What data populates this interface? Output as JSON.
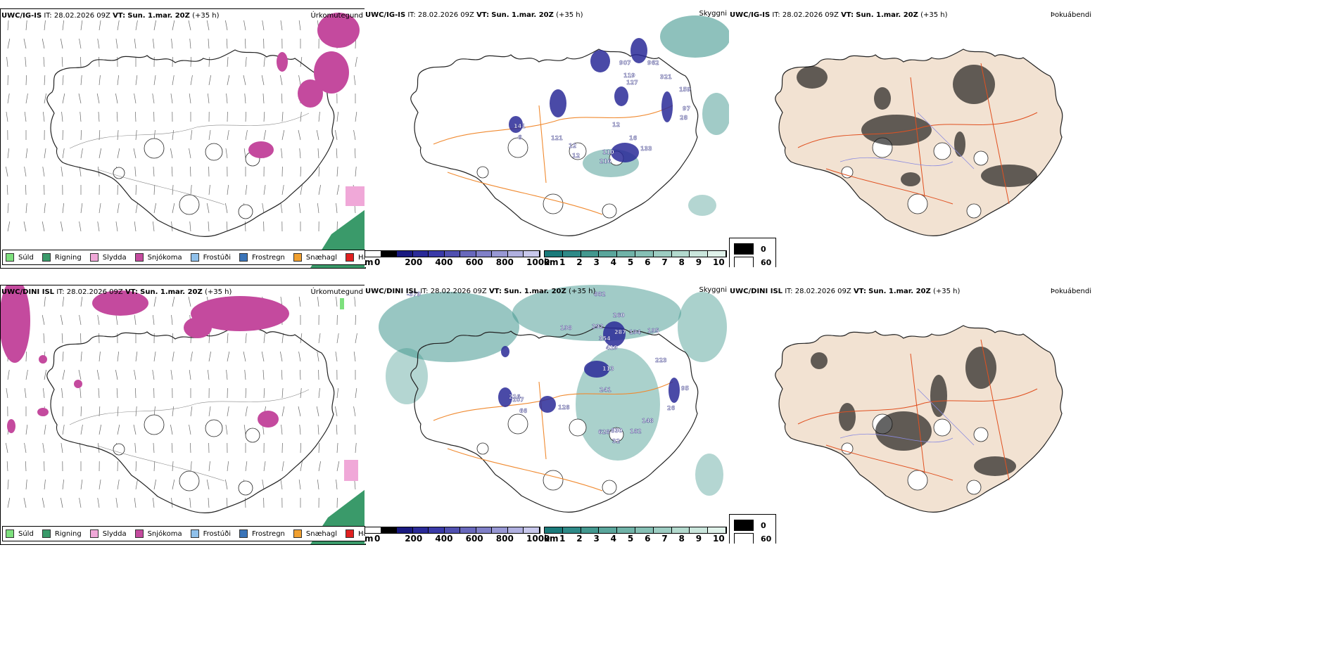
{
  "rows": [
    {
      "model": "UWC/IG-IS",
      "it_label": "IT:",
      "it_value": "28.02.2026 09Z",
      "vt_label": "VT:",
      "vt_value": "Sun. 1.mar. 20Z",
      "lead": "(+35 h)"
    },
    {
      "model": "UWC/DINI ISL",
      "it_label": "IT:",
      "it_value": "28.02.2026 09Z",
      "vt_label": "VT:",
      "vt_value": "Sun. 1.mar. 20Z",
      "lead": "(+35 h)"
    }
  ],
  "titles": {
    "precip": "Úrkomutegund",
    "cloud": "Skyggni",
    "fog": "Þokuábendi"
  },
  "precip_legend": [
    {
      "label": "Súld",
      "color": "#7de07d"
    },
    {
      "label": "Rigning",
      "color": "#3a9a6a"
    },
    {
      "label": "Slydda",
      "color": "#f0a8d8"
    },
    {
      "label": "Snjókoma",
      "color": "#c44a9e"
    },
    {
      "label": "Frostúði",
      "color": "#8fc0ea"
    },
    {
      "label": "Frostregn",
      "color": "#3a74b8"
    },
    {
      "label": "Snæhagl",
      "color": "#f0a030"
    },
    {
      "label": "Haglél",
      "color": "#e02020"
    }
  ],
  "cloud_scale": {
    "unit": "m",
    "ticks": [
      "0",
      "200",
      "400",
      "600",
      "800",
      "1000"
    ],
    "colors": [
      "#ffffff",
      "#000000",
      "#1a1a80",
      "#2a2a98",
      "#3a3aa8",
      "#5050b0",
      "#6868bc",
      "#8080c8",
      "#9898d4",
      "#b0b0e0",
      "#c8c8ec"
    ]
  },
  "vis_scale": {
    "unit": "km",
    "ticks": [
      "1",
      "2",
      "3",
      "4",
      "5",
      "6",
      "7",
      "8",
      "9",
      "10"
    ],
    "colors": [
      "#1a7a7a",
      "#2e8a88",
      "#43988f",
      "#5aa69c",
      "#70b3a8",
      "#86c0b5",
      "#9dcdc2",
      "#b3dace",
      "#cae6dc",
      "#e0f2ea"
    ]
  },
  "fog_scale": [
    {
      "value": "0",
      "color": "#000000"
    },
    {
      "value": "60",
      "color": "#ffffff"
    }
  ],
  "cloud_labels_top": [
    "907",
    "962",
    "119",
    "127",
    "321",
    "159",
    "97",
    "28",
    "12",
    "141",
    "6",
    "121",
    "16",
    "133",
    "110",
    "216",
    "12",
    "12"
  ],
  "cloud_labels_bottom": [
    "-379",
    "882",
    "260",
    "287",
    "194",
    "195",
    "198",
    "292",
    "354",
    "419",
    "113",
    "223",
    "95",
    "241",
    "216",
    "107",
    "66",
    "128",
    "26",
    "148",
    "628",
    "830",
    "182",
    "32"
  ]
}
